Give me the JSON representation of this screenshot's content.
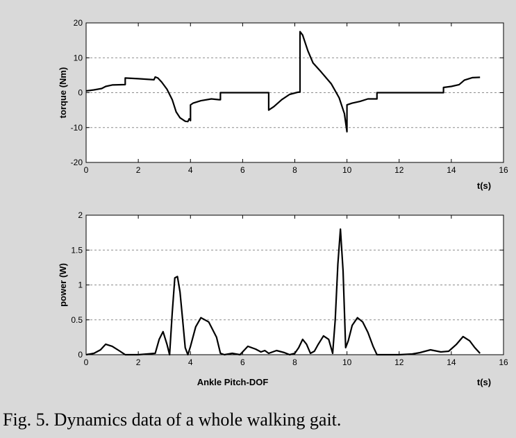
{
  "caption": "Fig. 5. Dynamics data of a whole walking gait.",
  "chart_data": [
    {
      "type": "line",
      "xlabel": "t(s)",
      "ylabel": "torque (Nm)",
      "xlim": [
        0,
        16
      ],
      "ylim": [
        -20,
        20
      ],
      "xticks": [
        0,
        2,
        4,
        6,
        8,
        10,
        12,
        14,
        16
      ],
      "yticks": [
        -20,
        -10,
        0,
        10,
        20
      ],
      "grid": "horizontal-dashed",
      "series": [
        {
          "x": [
            0,
            0.3,
            0.6,
            0.75,
            1.0,
            1.5,
            1.5,
            2.0,
            2.6,
            2.65,
            2.75,
            2.9,
            3.1,
            3.3,
            3.45,
            3.6,
            3.8,
            3.9,
            3.95,
            4.0,
            4.0,
            4.1,
            4.4,
            4.8,
            5.1,
            5.15,
            5.15,
            6.5,
            7.0,
            7.0,
            7.2,
            7.5,
            7.8,
            8.1,
            8.2,
            8.2,
            8.3,
            8.5,
            8.7,
            9.0,
            9.4,
            9.7,
            9.9,
            10.0,
            10.0,
            10.2,
            10.5,
            10.8,
            11.0,
            11.15,
            11.15,
            13.7,
            13.7,
            14.0,
            14.3,
            14.5,
            14.8,
            15.1
          ],
          "y": [
            0.5,
            0.8,
            1.2,
            1.8,
            2.2,
            2.3,
            4.2,
            4.0,
            3.7,
            4.5,
            4.2,
            3.0,
            1.0,
            -2.0,
            -5.5,
            -7.2,
            -8.2,
            -8.3,
            -7.5,
            -8.0,
            -3.5,
            -3.0,
            -2.3,
            -1.8,
            -2.0,
            -2.0,
            0,
            0,
            0,
            -5.0,
            -4.0,
            -2.0,
            -0.5,
            0.1,
            0.2,
            17.5,
            16.5,
            12.0,
            8.5,
            6.0,
            2.5,
            -1.5,
            -6.0,
            -11.2,
            -3.5,
            -3.0,
            -2.5,
            -1.8,
            -1.8,
            -1.8,
            0,
            0,
            1.5,
            1.8,
            2.3,
            3.6,
            4.3,
            4.4
          ]
        }
      ]
    },
    {
      "type": "line",
      "xlabel": "t(s)",
      "ylabel": "power (W)",
      "title": "Ankle Pitch-DOF",
      "xlim": [
        0,
        16
      ],
      "ylim": [
        0,
        2
      ],
      "xticks": [
        0,
        2,
        4,
        6,
        8,
        10,
        12,
        14,
        16
      ],
      "yticks": [
        0,
        0.5,
        1,
        1.5,
        2
      ],
      "grid": "horizontal-dashed",
      "series": [
        {
          "x": [
            0,
            0.3,
            0.55,
            0.75,
            1.0,
            1.3,
            1.5,
            2.0,
            2.65,
            2.8,
            2.95,
            3.1,
            3.2,
            3.3,
            3.4,
            3.5,
            3.6,
            3.7,
            3.8,
            3.9,
            4.0,
            4.2,
            4.4,
            4.7,
            5.0,
            5.15,
            5.3,
            5.6,
            5.9,
            6.2,
            6.5,
            6.7,
            6.85,
            7.0,
            7.3,
            7.6,
            7.8,
            8.0,
            8.15,
            8.3,
            8.45,
            8.6,
            8.75,
            8.9,
            9.1,
            9.3,
            9.45,
            9.55,
            9.65,
            9.75,
            9.85,
            9.95,
            10.05,
            10.2,
            10.4,
            10.6,
            10.8,
            11.0,
            11.15,
            11.5,
            12.0,
            12.5,
            12.8,
            13.2,
            13.6,
            13.9,
            14.2,
            14.45,
            14.7,
            14.9,
            15.1
          ],
          "y": [
            0,
            0.02,
            0.07,
            0.15,
            0.12,
            0.05,
            0,
            0,
            0.02,
            0.22,
            0.33,
            0.15,
            0,
            0.6,
            1.1,
            1.12,
            0.9,
            0.5,
            0.1,
            0,
            0.12,
            0.4,
            0.53,
            0.47,
            0.25,
            0.02,
            0,
            0.02,
            0.0,
            0.12,
            0.08,
            0.04,
            0.06,
            0.02,
            0.06,
            0.03,
            0,
            0.02,
            0.1,
            0.22,
            0.15,
            0.02,
            0.05,
            0.15,
            0.27,
            0.22,
            0.02,
            0.5,
            1.3,
            1.8,
            1.2,
            0.1,
            0.2,
            0.42,
            0.53,
            0.47,
            0.32,
            0.12,
            0,
            0,
            0,
            0.01,
            0.03,
            0.07,
            0.04,
            0.05,
            0.15,
            0.26,
            0.2,
            0.1,
            0.02
          ]
        }
      ]
    }
  ]
}
